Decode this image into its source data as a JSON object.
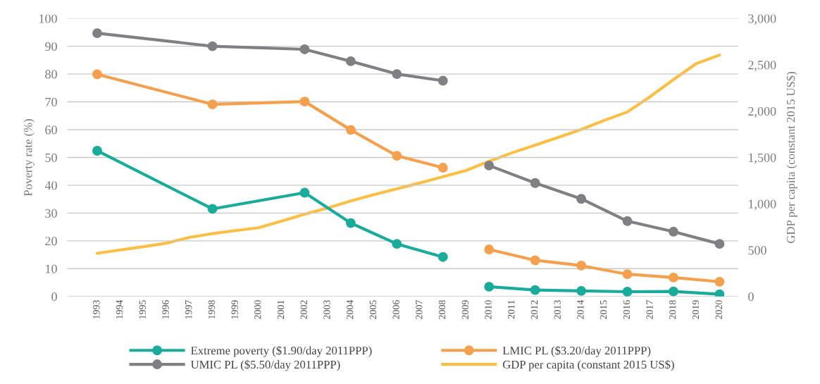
{
  "chart_data": {
    "type": "line",
    "ylabel": "Poverty rate (%)",
    "y2label": "GDP per capita (constant 2015 US$)",
    "xlim": [
      1991.7,
      2020.8
    ],
    "xticks": [
      1993,
      1994,
      1995,
      1996,
      1997,
      1998,
      1999,
      2000,
      2001,
      2002,
      2003,
      2004,
      2005,
      2006,
      2007,
      2008,
      2009,
      2010,
      2011,
      2012,
      2013,
      2014,
      2015,
      2016,
      2017,
      2018,
      2019,
      2020
    ],
    "ylim": [
      0,
      100
    ],
    "yticks": [
      0,
      10,
      20,
      30,
      40,
      50,
      60,
      70,
      80,
      90,
      100
    ],
    "y2lim": [
      0,
      3000
    ],
    "y2ticks": [
      0,
      500,
      {
        "value": 1000,
        "label": "1,000"
      },
      {
        "value": 1500,
        "label": "1,500"
      },
      {
        "value": 2000,
        "label": "2,000"
      },
      {
        "value": 2500,
        "label": "2,500"
      },
      {
        "value": 3000,
        "label": "3,000"
      }
    ],
    "grid": "y",
    "legend": "bottom",
    "series": [
      {
        "name": "Extreme poverty ($1.90/day 2011PPP)",
        "color": "#1aab9b",
        "marker": "circle",
        "x": [
          1993,
          1998,
          2002,
          2004,
          2006,
          2008,
          2009,
          2010,
          2012,
          2014,
          2016,
          2018,
          2020
        ],
        "values": [
          52.4,
          31.5,
          37.3,
          26.4,
          18.9,
          14.2,
          null,
          3.5,
          2.3,
          2.0,
          1.7,
          1.8,
          0.8
        ]
      },
      {
        "name": "LMIC PL ($3.20/day 2011PPP)",
        "color": "#f4a04f",
        "marker": "circle",
        "x": [
          1993,
          1998,
          2002,
          2004,
          2006,
          2008,
          2009,
          2010,
          2012,
          2014,
          2016,
          2018,
          2020
        ],
        "values": [
          79.9,
          69.1,
          70.1,
          59.9,
          50.6,
          46.3,
          null,
          16.9,
          13.0,
          11.1,
          8.0,
          6.8,
          5.3
        ]
      },
      {
        "name": "UMIC PL ($5.50/day 2011PPP)",
        "color": "#7f7f84",
        "marker": "circle",
        "x": [
          1993,
          1998,
          2002,
          2004,
          2006,
          2008,
          2009,
          2010,
          2012,
          2014,
          2016,
          2018,
          2020
        ],
        "values": [
          94.7,
          90.0,
          88.9,
          84.6,
          80.0,
          77.6,
          null,
          47.1,
          40.8,
          35.1,
          27.1,
          23.3,
          18.9
        ]
      },
      {
        "name": "GDP per capita (constant 2015 US$)",
        "color": "#fbbf45",
        "marker": "none",
        "axis": "y2",
        "x": [
          1993,
          1994,
          1995,
          1996,
          1997,
          1998,
          1999,
          2000,
          2001,
          2002,
          2003,
          2004,
          2005,
          2006,
          2007,
          2008,
          2009,
          2010,
          2011,
          2012,
          2013,
          2014,
          2015,
          2016,
          2017,
          2018,
          2019,
          2020
        ],
        "values": [
          466,
          502,
          537,
          575,
          637,
          678,
          711,
          741,
          814,
          887,
          955,
          1031,
          1099,
          1161,
          1225,
          1292,
          1359,
          1459,
          1550,
          1632,
          1717,
          1802,
          1900,
          1991,
          2158,
          2340,
          2514,
          2605
        ]
      }
    ]
  }
}
